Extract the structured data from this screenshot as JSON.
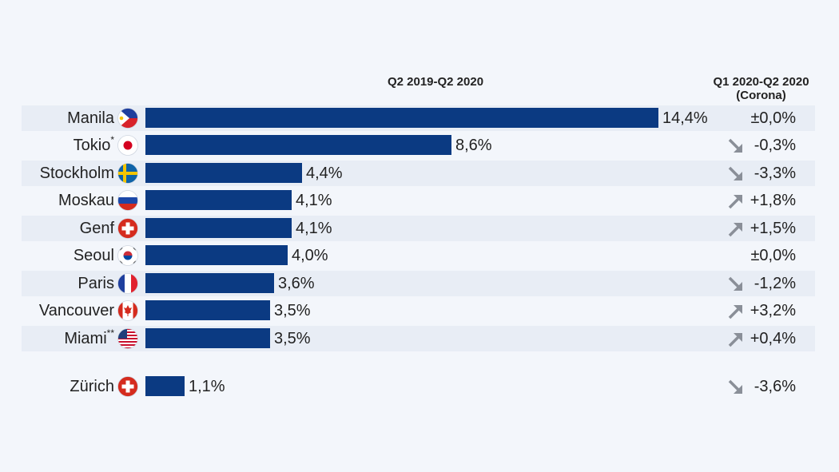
{
  "chart_data": {
    "type": "bar",
    "orientation": "horizontal",
    "column_headers": {
      "bars": "Q2 2019-Q2 2020",
      "change": "Q1 2020-Q2 2020",
      "change_sub": "(Corona)"
    },
    "rows": [
      {
        "city": "Manila",
        "sup": "",
        "flag": "philippines",
        "value": 14.4,
        "value_label": "14,4%",
        "change_label": "±0,0%",
        "trend": "none"
      },
      {
        "city": "Tokio",
        "sup": "*",
        "flag": "japan",
        "value": 8.6,
        "value_label": "8,6%",
        "change_label": "-0,3%",
        "trend": "down"
      },
      {
        "city": "Stockholm",
        "sup": "",
        "flag": "sweden",
        "value": 4.4,
        "value_label": "4,4%",
        "change_label": "-3,3%",
        "trend": "down"
      },
      {
        "city": "Moskau",
        "sup": "",
        "flag": "russia",
        "value": 4.1,
        "value_label": "4,1%",
        "change_label": "+1,8%",
        "trend": "up"
      },
      {
        "city": "Genf",
        "sup": "",
        "flag": "switzerland",
        "value": 4.1,
        "value_label": "4,1%",
        "change_label": "+1,5%",
        "trend": "up"
      },
      {
        "city": "Seoul",
        "sup": "",
        "flag": "south-korea",
        "value": 4.0,
        "value_label": "4,0%",
        "change_label": "±0,0%",
        "trend": "none"
      },
      {
        "city": "Paris",
        "sup": "",
        "flag": "france",
        "value": 3.6,
        "value_label": "3,6%",
        "change_label": "-1,2%",
        "trend": "down"
      },
      {
        "city": "Vancouver",
        "sup": "",
        "flag": "canada",
        "value": 3.5,
        "value_label": "3,5%",
        "change_label": "+3,2%",
        "trend": "up"
      },
      {
        "city": "Miami",
        "sup": "**",
        "flag": "usa",
        "value": 3.5,
        "value_label": "3,5%",
        "change_label": "+0,4%",
        "trend": "up"
      },
      {
        "city": "Zürich",
        "sup": "",
        "flag": "switzerland",
        "value": 1.1,
        "value_label": "1,1%",
        "change_label": "-3,6%",
        "trend": "down"
      }
    ],
    "xlim": [
      0,
      14.4
    ],
    "grid": false,
    "colors": {
      "bar": "#0b3a82",
      "row_shade": "#e8edf5",
      "arrow": "#8a8f98",
      "background": "#f3f6fb"
    }
  }
}
